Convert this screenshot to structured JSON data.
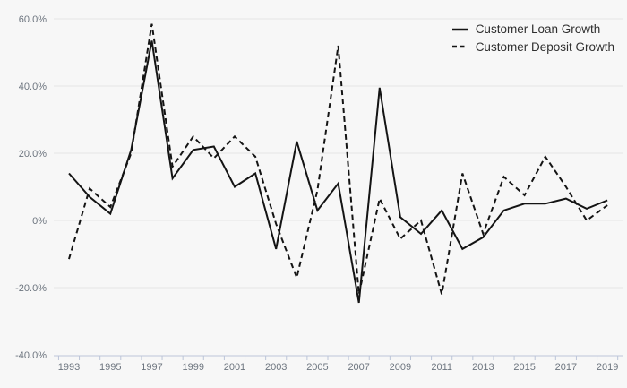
{
  "colors": {
    "background": "#f7f7f7",
    "gridline": "#e6e6e6",
    "axis_line": "#bcc5d8",
    "tick_mark": "#bcc5d8",
    "tick_label": "#6d757f",
    "series_line": "#141414",
    "legend_text": "#2f2f2f"
  },
  "legend": {
    "items": [
      {
        "label": "Customer Loan Growth",
        "style": "solid"
      },
      {
        "label": "Customer Deposit Growth",
        "style": "dashed"
      }
    ]
  },
  "chart_data": {
    "type": "line",
    "x": [
      1993,
      1994,
      1995,
      1996,
      1997,
      1998,
      1999,
      2000,
      2001,
      2002,
      2003,
      2004,
      2005,
      2006,
      2007,
      2008,
      2009,
      2010,
      2011,
      2012,
      2013,
      2014,
      2015,
      2016,
      2017,
      2018,
      2019
    ],
    "series": [
      {
        "name": "Customer Loan Growth",
        "dash": "solid",
        "values": [
          14,
          7,
          2,
          21,
          53.5,
          12.5,
          21,
          22,
          10,
          14,
          -8.5,
          23.5,
          3,
          11,
          -24.5,
          39.5,
          1,
          -4,
          3,
          -8.5,
          -5,
          3,
          5,
          5,
          6.5,
          3.5,
          6
        ]
      },
      {
        "name": "Customer Deposit Growth",
        "dash": "dashed",
        "values": [
          -11.5,
          9.5,
          4,
          20,
          58.5,
          16,
          25,
          18.5,
          25,
          19,
          -1,
          -17,
          9,
          52,
          -22,
          6.5,
          -5.5,
          0,
          -22,
          14,
          -4,
          13,
          7.5,
          19,
          10,
          0,
          4.5
        ]
      }
    ],
    "title": "",
    "xlabel": "",
    "ylabel": "",
    "ylim": [
      -40,
      60
    ],
    "yticks": [
      {
        "value": 60,
        "label": "60.0%"
      },
      {
        "value": 40,
        "label": "40.0%"
      },
      {
        "value": 20,
        "label": "20.0%"
      },
      {
        "value": 0,
        "label": "0%"
      },
      {
        "value": -20,
        "label": "-20.0%"
      },
      {
        "value": -40,
        "label": "-40.0%"
      }
    ],
    "xtick_labels": [
      "1993",
      "1995",
      "1997",
      "1999",
      "2001",
      "2003",
      "2005",
      "2007",
      "2009",
      "2011",
      "2013",
      "2015",
      "2017",
      "2019"
    ],
    "grid": "horizontal",
    "legend_position": "top-right"
  }
}
